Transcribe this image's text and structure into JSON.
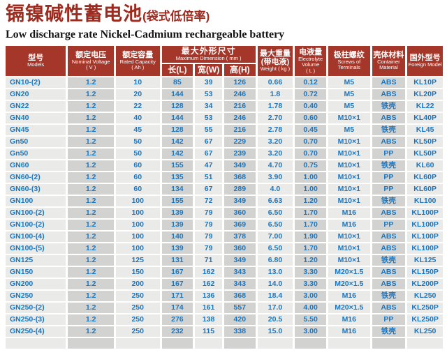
{
  "page": {
    "title_cn": "镉镍碱性蓄电池",
    "title_cn_suffix": "(袋式低倍率)",
    "title_en": "Low discharge rate Nickel-Cadmium rechargeable battery"
  },
  "colors": {
    "header_bg": "#a5372a",
    "title_red": "#9e2b1f",
    "cell_text_blue": "#1b76c0",
    "cell_light": "#eaeae8",
    "cell_dark": "#d2d2d0"
  },
  "table": {
    "headers": {
      "models": {
        "cn": "型号",
        "en": "Models"
      },
      "voltage": {
        "cn": "额定电压",
        "en": "Nominal Voltage",
        "unit": "( V )"
      },
      "capacity": {
        "cn": "额定容量",
        "en": "Rated Capacity",
        "unit": "( Ah )"
      },
      "dimension": {
        "cn": "最大外形尺寸",
        "en": "Maximum Dimension ( mm )",
        "sub_l": "长(L)",
        "sub_w": "宽(W)",
        "sub_h": "高(H)"
      },
      "weight": {
        "cn": "最大重量",
        "cn2": "(带电液)",
        "en": "Weight ( kg )"
      },
      "electrolyte": {
        "cn": "电液量",
        "en": "Electrolyte",
        "en2": "Volume",
        "unit": "( L )"
      },
      "screws": {
        "cn": "极柱螺纹",
        "en": "Screws of",
        "en2": "Terminals"
      },
      "container": {
        "cn": "壳体材料",
        "en": "Container",
        "en2": "Material"
      },
      "foreign": {
        "cn": "国外型号",
        "en": "Foreign Model"
      }
    },
    "rows": [
      [
        "GN10-(2)",
        "1.2",
        "10",
        "85",
        "39",
        "126",
        "0.66",
        "0.12",
        "M5",
        "ABS",
        "KL10P"
      ],
      [
        "GN20",
        "1.2",
        "20",
        "144",
        "53",
        "246",
        "1.8",
        "0.72",
        "M5",
        "ABS",
        "KL20P"
      ],
      [
        "GN22",
        "1.2",
        "22",
        "128",
        "34",
        "216",
        "1.78",
        "0.40",
        "M5",
        "铁壳",
        "KL22"
      ],
      [
        "GN40",
        "1.2",
        "40",
        "144",
        "53",
        "246",
        "2.70",
        "0.60",
        "M10×1",
        "ABS",
        "KL40P"
      ],
      [
        "GN45",
        "1.2",
        "45",
        "128",
        "55",
        "216",
        "2.78",
        "0.45",
        "M5",
        "铁壳",
        "KL45"
      ],
      [
        "Gn50",
        "1.2",
        "50",
        "142",
        "67",
        "229",
        "3.20",
        "0.70",
        "M10×1",
        "ABS",
        "KL50P"
      ],
      [
        "Gn50",
        "1.2",
        "50",
        "142",
        "67",
        "239",
        "3.20",
        "0.70",
        "M10×1",
        "PP",
        "KL50P"
      ],
      [
        "GN60",
        "1.2",
        "60",
        "155",
        "47",
        "349",
        "4.70",
        "0.75",
        "M10×1",
        "铁壳",
        "KL60"
      ],
      [
        "GN60-(2)",
        "1.2",
        "60",
        "135",
        "51",
        "368",
        "3.90",
        "1.00",
        "M10×1",
        "PP",
        "KL60P"
      ],
      [
        "GN60-(3)",
        "1.2",
        "60",
        "134",
        "67",
        "289",
        "4.0",
        "1.00",
        "M10×1",
        "PP",
        "KL60P"
      ],
      [
        "GN100",
        "1.2",
        "100",
        "155",
        "72",
        "349",
        "6.63",
        "1.20",
        "M10×1",
        "铁壳",
        "KL100"
      ],
      [
        "GN100-(2)",
        "1.2",
        "100",
        "139",
        "79",
        "360",
        "6.50",
        "1.70",
        "M16",
        "ABS",
        "KL100P"
      ],
      [
        "GN100-(2)",
        "1.2",
        "100",
        "139",
        "79",
        "369",
        "6.50",
        "1.70",
        "M16",
        "PP",
        "KL100P"
      ],
      [
        "GN100-(4)",
        "1.2",
        "100",
        "140",
        "79",
        "378",
        "7.00",
        "1.90",
        "M10×1",
        "ABS",
        "KL100P"
      ],
      [
        "GN100-(5)",
        "1.2",
        "100",
        "139",
        "79",
        "360",
        "6.50",
        "1.70",
        "M10×1",
        "ABS",
        "KL100P"
      ],
      [
        "GN125",
        "1.2",
        "125",
        "131",
        "71",
        "349",
        "6.80",
        "1.20",
        "M10×1",
        "铁壳",
        "KL125"
      ],
      [
        "GN150",
        "1.2",
        "150",
        "167",
        "162",
        "343",
        "13.0",
        "3.30",
        "M20×1.5",
        "ABS",
        "KL150P"
      ],
      [
        "GN200",
        "1.2",
        "200",
        "167",
        "162",
        "343",
        "14.0",
        "3.30",
        "M20×1.5",
        "ABS",
        "KL200P"
      ],
      [
        "GN250",
        "1.2",
        "250",
        "171",
        "136",
        "368",
        "18.4",
        "3.00",
        "M16",
        "铁壳",
        "KL250"
      ],
      [
        "GN250-(2)",
        "1.2",
        "250",
        "174",
        "161",
        "557",
        "17.0",
        "4.00",
        "M20×1.5",
        "ABS",
        "KL250P"
      ],
      [
        "GN250-(3)",
        "1.2",
        "250",
        "276",
        "138",
        "420",
        "20.5",
        "5.50",
        "M16",
        "PP",
        "KL250P"
      ],
      [
        "GN250-(4)",
        "1.2",
        "250",
        "232",
        "115",
        "338",
        "15.0",
        "3.00",
        "M16",
        "铁壳",
        "KL250"
      ],
      [
        "",
        "",
        "",
        "",
        "",
        "",
        "",
        "",
        "",
        "",
        ""
      ]
    ]
  }
}
